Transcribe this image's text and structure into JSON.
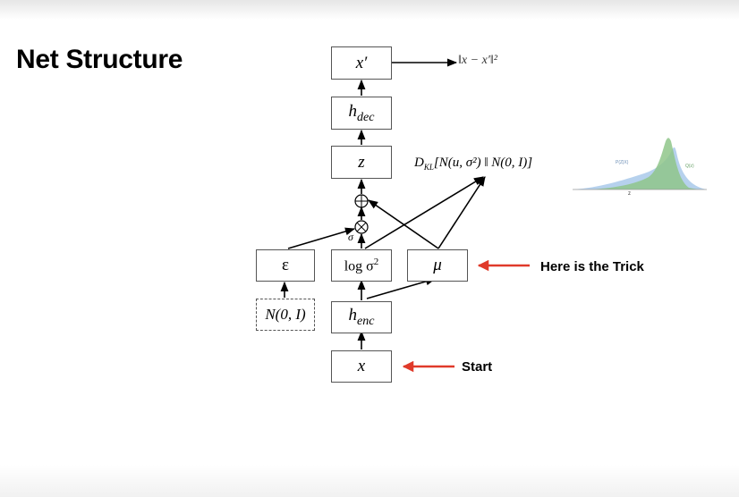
{
  "slide": {
    "title": "Net Structure"
  },
  "nodes": {
    "x_prime": "x′",
    "h_dec_base": "h",
    "h_dec_sub": "dec",
    "z": "z",
    "epsilon": "ε",
    "log_sigma_base": "log σ",
    "log_sigma_sup": "2",
    "mu": "μ",
    "noise_source": "N(0, I)",
    "h_enc_base": "h",
    "h_enc_sub": "enc",
    "x": "x"
  },
  "operators": {
    "plus": "⊕",
    "times": "⊗",
    "sigma_label": "σ"
  },
  "losses": {
    "reconstruction": "‖x − x′‖²",
    "kl_prefix": "D",
    "kl_sub": "KL",
    "kl_body": "[N(u, σ²) ‖ N(0, I)]"
  },
  "annotations": {
    "trick": "Here is the Trick",
    "start": "Start"
  },
  "thumbnail": {
    "label_left": "P(Z|X)",
    "label_right": "Q(z)",
    "axis_label": "z",
    "colors": {
      "blue": "#a9c9ea",
      "green": "#8fc689"
    }
  },
  "colors": {
    "arrow_red": "#e03a2a",
    "line": "#000000",
    "box_border": "#555555"
  }
}
